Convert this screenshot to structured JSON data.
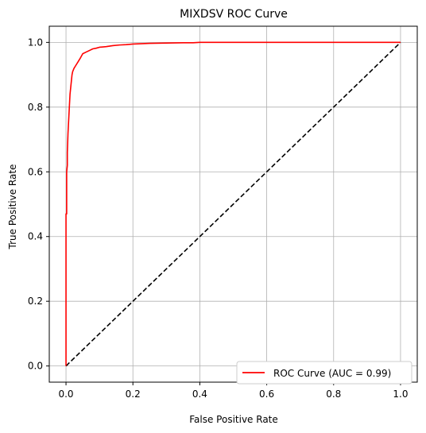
{
  "chart_data": {
    "type": "line",
    "title": "MIXDSV ROC Curve",
    "xlabel": "False Positive Rate",
    "ylabel": "True Positive Rate",
    "xlim": [
      -0.05,
      1.05
    ],
    "ylim": [
      -0.05,
      1.05
    ],
    "xticks": [
      "0.0",
      "0.2",
      "0.4",
      "0.6",
      "0.8",
      "1.0"
    ],
    "yticks": [
      "0.0",
      "0.2",
      "0.4",
      "0.6",
      "0.8",
      "1.0"
    ],
    "grid": true,
    "legend_position": "lower-right",
    "series": [
      {
        "name": "ROC Curve (AUC = 0.99)",
        "color": "#ff0000",
        "style": "solid",
        "x": [
          0.0,
          0.0,
          0.002,
          0.002,
          0.004,
          0.004,
          0.006,
          0.008,
          0.01,
          0.012,
          0.014,
          0.016,
          0.018,
          0.02,
          0.024,
          0.03,
          0.036,
          0.042,
          0.05,
          0.06,
          0.07,
          0.08,
          0.09,
          0.1,
          0.12,
          0.14,
          0.16,
          0.18,
          0.2,
          0.25,
          0.3,
          0.35,
          0.38,
          0.4,
          0.6,
          0.8,
          1.0
        ],
        "y": [
          0.0,
          0.47,
          0.47,
          0.6,
          0.62,
          0.66,
          0.72,
          0.76,
          0.8,
          0.84,
          0.86,
          0.88,
          0.9,
          0.91,
          0.92,
          0.93,
          0.94,
          0.95,
          0.965,
          0.97,
          0.975,
          0.98,
          0.982,
          0.985,
          0.987,
          0.99,
          0.992,
          0.993,
          0.995,
          0.997,
          0.998,
          0.999,
          0.999,
          1.0,
          1.0,
          1.0,
          1.0
        ]
      },
      {
        "name": "",
        "color": "#000000",
        "style": "dashed",
        "x": [
          0.0,
          1.0
        ],
        "y": [
          0.0,
          1.0
        ]
      }
    ]
  }
}
